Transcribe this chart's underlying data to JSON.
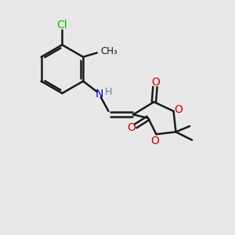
{
  "background_color": "#e8e8e8",
  "bond_color": "#1a1a1a",
  "bond_width": 1.8,
  "atoms": {
    "Cl": {
      "color": "#00bb00",
      "fontsize": 10
    },
    "O": {
      "color": "#cc0000",
      "fontsize": 10
    },
    "N": {
      "color": "#0000cc",
      "fontsize": 10
    },
    "H": {
      "color": "#558899",
      "fontsize": 9
    }
  },
  "figsize": [
    3.0,
    3.0
  ],
  "dpi": 100
}
